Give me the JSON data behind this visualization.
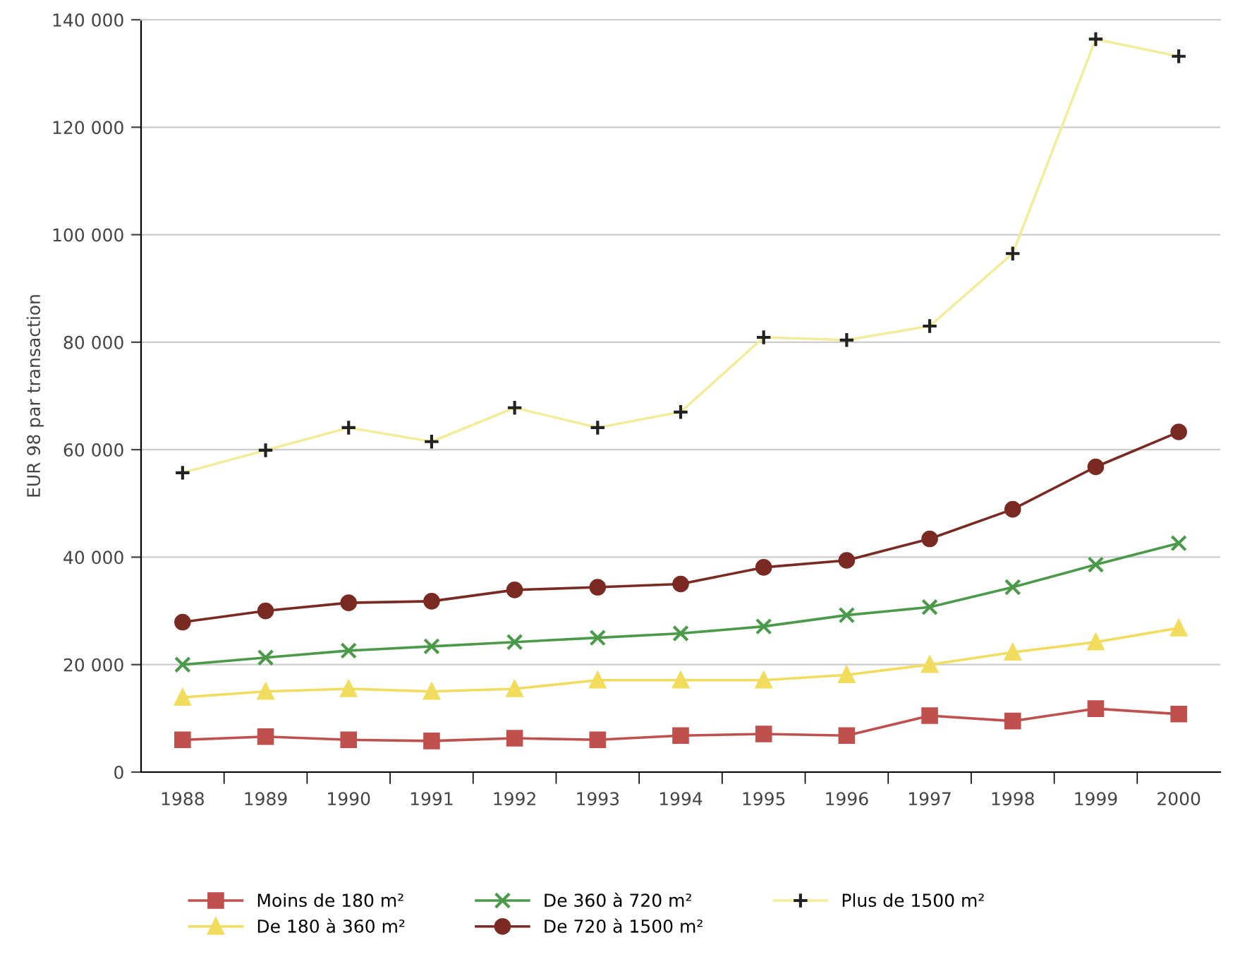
{
  "chart_data": {
    "type": "line",
    "ylabel": "EUR 98 par transaction",
    "categories": [
      "1988",
      "1989",
      "1990",
      "1991",
      "1992",
      "1993",
      "1994",
      "1995",
      "1996",
      "1997",
      "1998",
      "1999",
      "2000"
    ],
    "series": [
      {
        "name": "Moins de 180 m²",
        "color": "#c0504d",
        "marker": "square",
        "values": [
          6000,
          6600,
          6000,
          5800,
          6300,
          6000,
          6800,
          7100,
          6800,
          10500,
          9500,
          11800,
          10800
        ]
      },
      {
        "name": "De 180 à 360 m²",
        "color": "#f2dc5d",
        "marker": "triangle",
        "values": [
          13900,
          15000,
          15500,
          15000,
          15500,
          17100,
          17100,
          17100,
          18100,
          20000,
          22300,
          24200,
          26800
        ]
      },
      {
        "name": "De 360 à 720 m²",
        "color": "#4a9a4a",
        "marker": "cross",
        "values": [
          20000,
          21300,
          22600,
          23400,
          24200,
          25000,
          25800,
          27100,
          29200,
          30700,
          34400,
          38600,
          42600
        ]
      },
      {
        "name": "De 720 à 1500 m²",
        "color": "#7a2a22",
        "marker": "circle",
        "values": [
          27900,
          30000,
          31500,
          31800,
          33900,
          34400,
          35000,
          38100,
          39400,
          43400,
          48900,
          56800,
          63300
        ]
      },
      {
        "name": "Plus de 1500 m²",
        "color": "#f3ec9a",
        "marker": "plus",
        "values": [
          55700,
          59900,
          64100,
          61500,
          67800,
          64100,
          67000,
          80900,
          80400,
          83000,
          96500,
          136400,
          133200
        ]
      }
    ],
    "ylim": [
      0,
      140000
    ],
    "yticks": [
      0,
      {
        "value": 20000,
        "label": "20 000"
      },
      {
        "value": 40000,
        "label": "40 000"
      },
      {
        "value": 60000,
        "label": "60 000"
      },
      {
        "value": 80000,
        "label": "80 000"
      },
      {
        "value": 100000,
        "label": "100 000"
      },
      {
        "value": 120000,
        "label": "120 000"
      },
      {
        "value": 140000,
        "label": "140 000"
      }
    ],
    "grid": "y",
    "legend": "bottom"
  }
}
